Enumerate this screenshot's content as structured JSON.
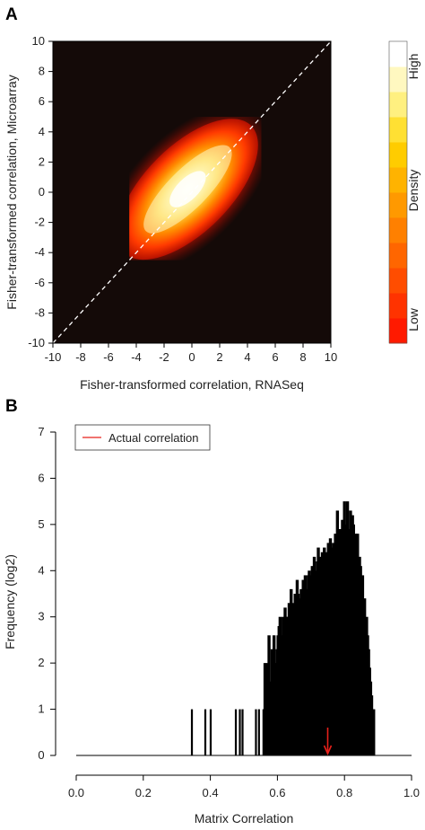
{
  "chart_data": [
    {
      "panel_label": "A",
      "type": "heatmap",
      "xlabel": "Fisher-transformed correlation, RNASeq",
      "ylabel": "Fisher-transformed correlation, Microarray",
      "xlim": [
        -10,
        10
      ],
      "ylim": [
        -10,
        10
      ],
      "xticks": [
        -10,
        -8,
        -6,
        -4,
        -2,
        0,
        2,
        4,
        6,
        8,
        10
      ],
      "yticks": [
        -10,
        -8,
        -6,
        -4,
        -2,
        0,
        2,
        4,
        6,
        8,
        10
      ],
      "background_color": "#140a08",
      "density_region": {
        "x_range": [
          -4.5,
          5
        ],
        "y_range": [
          -4.5,
          5
        ],
        "center": [
          -0.3,
          0.2
        ]
      },
      "identity_line": {
        "from": [
          -10,
          -10
        ],
        "to": [
          10,
          10
        ],
        "color": "#ffffff",
        "style": "dashed"
      },
      "colorbar": {
        "title": "Density",
        "high_label": "High",
        "low_label": "Low",
        "colors": [
          "#ff1a00",
          "#ff3300",
          "#ff4d00",
          "#ff6600",
          "#ff8000",
          "#ff9900",
          "#ffb300",
          "#ffcc00",
          "#ffe033",
          "#fff080",
          "#fff8c0",
          "#ffffff"
        ]
      }
    },
    {
      "panel_label": "B",
      "type": "bar",
      "xlabel": "Matrix Correlation",
      "ylabel": "Frequency (log2)",
      "xlim": [
        0.0,
        1.0
      ],
      "ylim": [
        0,
        7
      ],
      "xticks": [
        "0.0",
        "0.2",
        "0.4",
        "0.6",
        "0.8",
        "1.0"
      ],
      "yticks": [
        0,
        1,
        2,
        3,
        4,
        5,
        6,
        7
      ],
      "bar_color": "#000000",
      "legend": {
        "position": "top-left",
        "entries": [
          {
            "label": "Actual correlation",
            "color": "#e8201a"
          }
        ]
      },
      "actual_correlation": {
        "x": 0.75,
        "color": "#e8201a"
      },
      "bins": {
        "x": [
          0.345,
          0.385,
          0.401,
          0.476,
          0.488,
          0.496,
          0.536,
          0.545,
          0.56,
          0.563,
          0.566,
          0.569,
          0.572,
          0.575,
          0.578,
          0.581,
          0.584,
          0.587,
          0.59,
          0.593,
          0.596,
          0.599,
          0.602,
          0.605,
          0.608,
          0.611,
          0.614,
          0.617,
          0.62,
          0.623,
          0.626,
          0.629,
          0.632,
          0.635,
          0.638,
          0.641,
          0.644,
          0.647,
          0.65,
          0.653,
          0.656,
          0.659,
          0.662,
          0.665,
          0.668,
          0.671,
          0.674,
          0.677,
          0.68,
          0.683,
          0.686,
          0.689,
          0.692,
          0.695,
          0.698,
          0.701,
          0.704,
          0.707,
          0.71,
          0.713,
          0.716,
          0.719,
          0.722,
          0.725,
          0.728,
          0.731,
          0.734,
          0.737,
          0.74,
          0.743,
          0.746,
          0.749,
          0.752,
          0.755,
          0.758,
          0.761,
          0.764,
          0.767,
          0.77,
          0.773,
          0.776,
          0.779,
          0.782,
          0.785,
          0.788,
          0.791,
          0.794,
          0.797,
          0.8,
          0.803,
          0.806,
          0.809,
          0.812,
          0.815,
          0.818,
          0.821,
          0.824,
          0.827,
          0.83,
          0.833,
          0.836,
          0.839,
          0.842,
          0.845,
          0.848,
          0.851,
          0.854,
          0.857,
          0.86,
          0.863,
          0.866,
          0.869,
          0.872,
          0.875,
          0.878,
          0.881,
          0.884,
          0.887
        ],
        "values": [
          1,
          1,
          1,
          1,
          1,
          1,
          1,
          1,
          1,
          2,
          1.6,
          2,
          1.6,
          2.6,
          1.6,
          1,
          2.3,
          1.6,
          2.6,
          2,
          2,
          2.3,
          2.6,
          2.8,
          3,
          2.3,
          2.6,
          3,
          2,
          3.2,
          3,
          3,
          2.6,
          3.3,
          3,
          3.6,
          3.2,
          3.3,
          2.6,
          3.5,
          3.2,
          3.8,
          3.5,
          2.8,
          3.4,
          3.6,
          3.3,
          3.8,
          3.7,
          3.9,
          3.6,
          3.3,
          3.9,
          4,
          3.4,
          3.9,
          4.1,
          3.6,
          4.3,
          4,
          3.8,
          4.2,
          4.5,
          3.9,
          4.3,
          4.1,
          4.4,
          4,
          4.5,
          4.2,
          4.4,
          4.3,
          4.6,
          4,
          4.7,
          4.4,
          4.5,
          4.6,
          4.3,
          4.8,
          4.6,
          5.3,
          4.4,
          4.9,
          4.9,
          4.5,
          5.1,
          4.7,
          5.5,
          5,
          4.7,
          5.5,
          4.6,
          4.9,
          5.3,
          4.7,
          5.2,
          5,
          4.2,
          4.8,
          4.4,
          4.8,
          3.9,
          4.3,
          4.1,
          3.7,
          3.9,
          3.3,
          3.4,
          2.9,
          3,
          2.6,
          2.3,
          1.9,
          1.6,
          1.3,
          1,
          1
        ]
      }
    }
  ],
  "labels": {
    "panel_a": "A",
    "panel_b": "B"
  }
}
